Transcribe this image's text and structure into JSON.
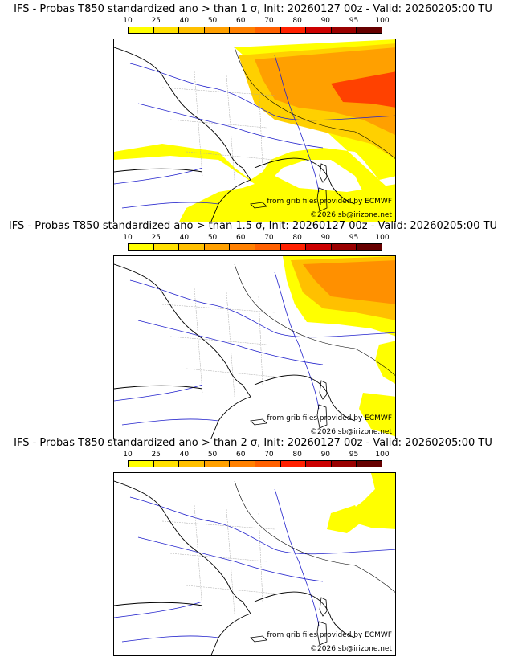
{
  "scale": {
    "labels": [
      "10",
      "25",
      "40",
      "50",
      "60",
      "70",
      "80",
      "90",
      "95",
      "100"
    ],
    "colors": [
      "#ffff00",
      "#ffe000",
      "#ffc000",
      "#ffa000",
      "#ff8000",
      "#ff6000",
      "#ff2000",
      "#cc0000",
      "#990000",
      "#660000"
    ]
  },
  "panels": [
    {
      "title": "IFS - Probas T850  standardized ano > than 1 σ, Init: 20260127 00z - Valid: 20260205:00 TU",
      "threshold": "1 σ"
    },
    {
      "title": "IFS - Probas T850  standardized ano > than 1.5 σ, Init: 20260127 00z - Valid: 20260205:00 TU",
      "threshold": "1.5 σ"
    },
    {
      "title": "IFS - Probas T850  standardized ano > than 2 σ, Init: 20260127 00z - Valid: 20260205:00 TU",
      "threshold": "2 σ"
    }
  ],
  "credits": {
    "grib": "from grib files provided by ECMWF",
    "copyright": "©2026 sb@irizone.net"
  },
  "colors": {
    "yellow": "#ffff00",
    "light_orange": "#ffc000",
    "orange": "#ff9000",
    "red": "#ff3000",
    "coast": "#000000",
    "rivers": "#2222cc",
    "borders": "#999999"
  }
}
